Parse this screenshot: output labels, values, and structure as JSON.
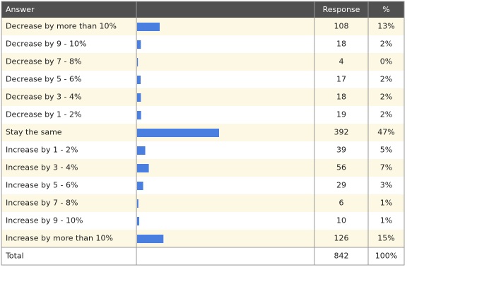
{
  "table": {
    "header": {
      "answer": "Answer",
      "response": "Response",
      "percent": "%"
    },
    "rows": [
      {
        "answer": "Decrease by more than 10%",
        "response": 108,
        "percent": "13%"
      },
      {
        "answer": "Decrease by 9 - 10%",
        "response": 18,
        "percent": "2%"
      },
      {
        "answer": "Decrease by 7 - 8%",
        "response": 4,
        "percent": "0%"
      },
      {
        "answer": "Decrease by 5 - 6%",
        "response": 17,
        "percent": "2%"
      },
      {
        "answer": "Decrease by 3 - 4%",
        "response": 18,
        "percent": "2%"
      },
      {
        "answer": "Decrease by 1 - 2%",
        "response": 19,
        "percent": "2%"
      },
      {
        "answer": "Stay the same",
        "response": 392,
        "percent": "47%"
      },
      {
        "answer": "Increase by 1 - 2%",
        "response": 39,
        "percent": "5%"
      },
      {
        "answer": "Increase by 3 - 4%",
        "response": 56,
        "percent": "7%"
      },
      {
        "answer": "Increase by 5 - 6%",
        "response": 29,
        "percent": "3%"
      },
      {
        "answer": "Increase by 7 - 8%",
        "response": 6,
        "percent": "1%"
      },
      {
        "answer": "Increase by 9 - 10%",
        "response": 10,
        "percent": "1%"
      },
      {
        "answer": "Increase by more than 10%",
        "response": 126,
        "percent": "15%"
      }
    ],
    "total": {
      "label": "Total",
      "response": 842,
      "percent": "100%"
    }
  }
}
